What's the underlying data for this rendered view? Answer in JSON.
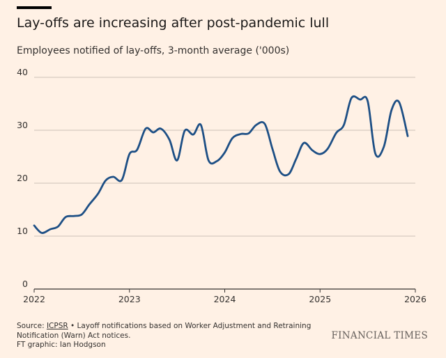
{
  "header": {
    "title": "Lay-offs are increasing after post-pandemic lull",
    "subtitle": "Employees notified of lay-offs, 3-month average ('000s)"
  },
  "footer": {
    "source_prefix": "Source: ",
    "source_link": "ICPSR",
    "source_rest": " • Layoff notifications based on Worker Adjustment and Retraining Notification (Warn) Act notices.",
    "credit": "FT graphic: Ian Hodgson",
    "brand": "FINANCIAL TIMES"
  },
  "colors": {
    "background": "#FFF1E5",
    "line": "#1D4F85",
    "grid": "#CCC1B7",
    "axis": "#33302E"
  },
  "chart_data": {
    "type": "line",
    "title": "Lay-offs are increasing after post-pandemic lull",
    "subtitle": "Employees notified of lay-offs, 3-month average ('000s)",
    "xlim": [
      2022,
      2026
    ],
    "ylim": [
      0,
      40
    ],
    "xticks": [
      2022,
      2023,
      2024,
      2025,
      2026
    ],
    "xtick_labels": [
      "2022",
      "2023",
      "2024",
      "2025",
      "2026"
    ],
    "yticks": [
      0,
      10,
      20,
      30,
      40
    ],
    "ytick_labels": [
      "0",
      "10",
      "20",
      "30",
      "40"
    ],
    "grid": true,
    "legend": "none",
    "series": [
      {
        "x": [
          2022.0,
          2022.08,
          2022.17,
          2022.25,
          2022.33,
          2022.42,
          2022.5,
          2022.58,
          2022.67,
          2022.75,
          2022.83,
          2022.92,
          2023.0,
          2023.08,
          2023.17,
          2023.25,
          2023.33,
          2023.42,
          2023.5,
          2023.58,
          2023.67,
          2023.75,
          2023.83,
          2023.92,
          2024.0,
          2024.08,
          2024.17,
          2024.25,
          2024.33,
          2024.42,
          2024.5,
          2024.58,
          2024.67,
          2024.75,
          2024.83,
          2024.92,
          2025.0,
          2025.08,
          2025.17,
          2025.25,
          2025.33,
          2025.42,
          2025.5,
          2025.58,
          2025.67,
          2025.75,
          2025.83,
          2025.92
        ],
        "y": [
          12.0,
          10.6,
          11.3,
          11.8,
          13.6,
          13.8,
          14.1,
          16.0,
          18.0,
          20.5,
          21.2,
          20.6,
          25.5,
          26.3,
          30.3,
          29.6,
          30.3,
          28.2,
          24.3,
          29.9,
          29.2,
          31.0,
          24.3,
          24.2,
          25.8,
          28.5,
          29.3,
          29.4,
          31.0,
          31.2,
          26.5,
          22.2,
          21.7,
          24.6,
          27.6,
          26.2,
          25.5,
          26.5,
          29.5,
          31.0,
          36.1,
          35.8,
          35.5,
          25.6,
          26.9,
          33.8,
          35.3,
          28.9
        ]
      }
    ]
  }
}
